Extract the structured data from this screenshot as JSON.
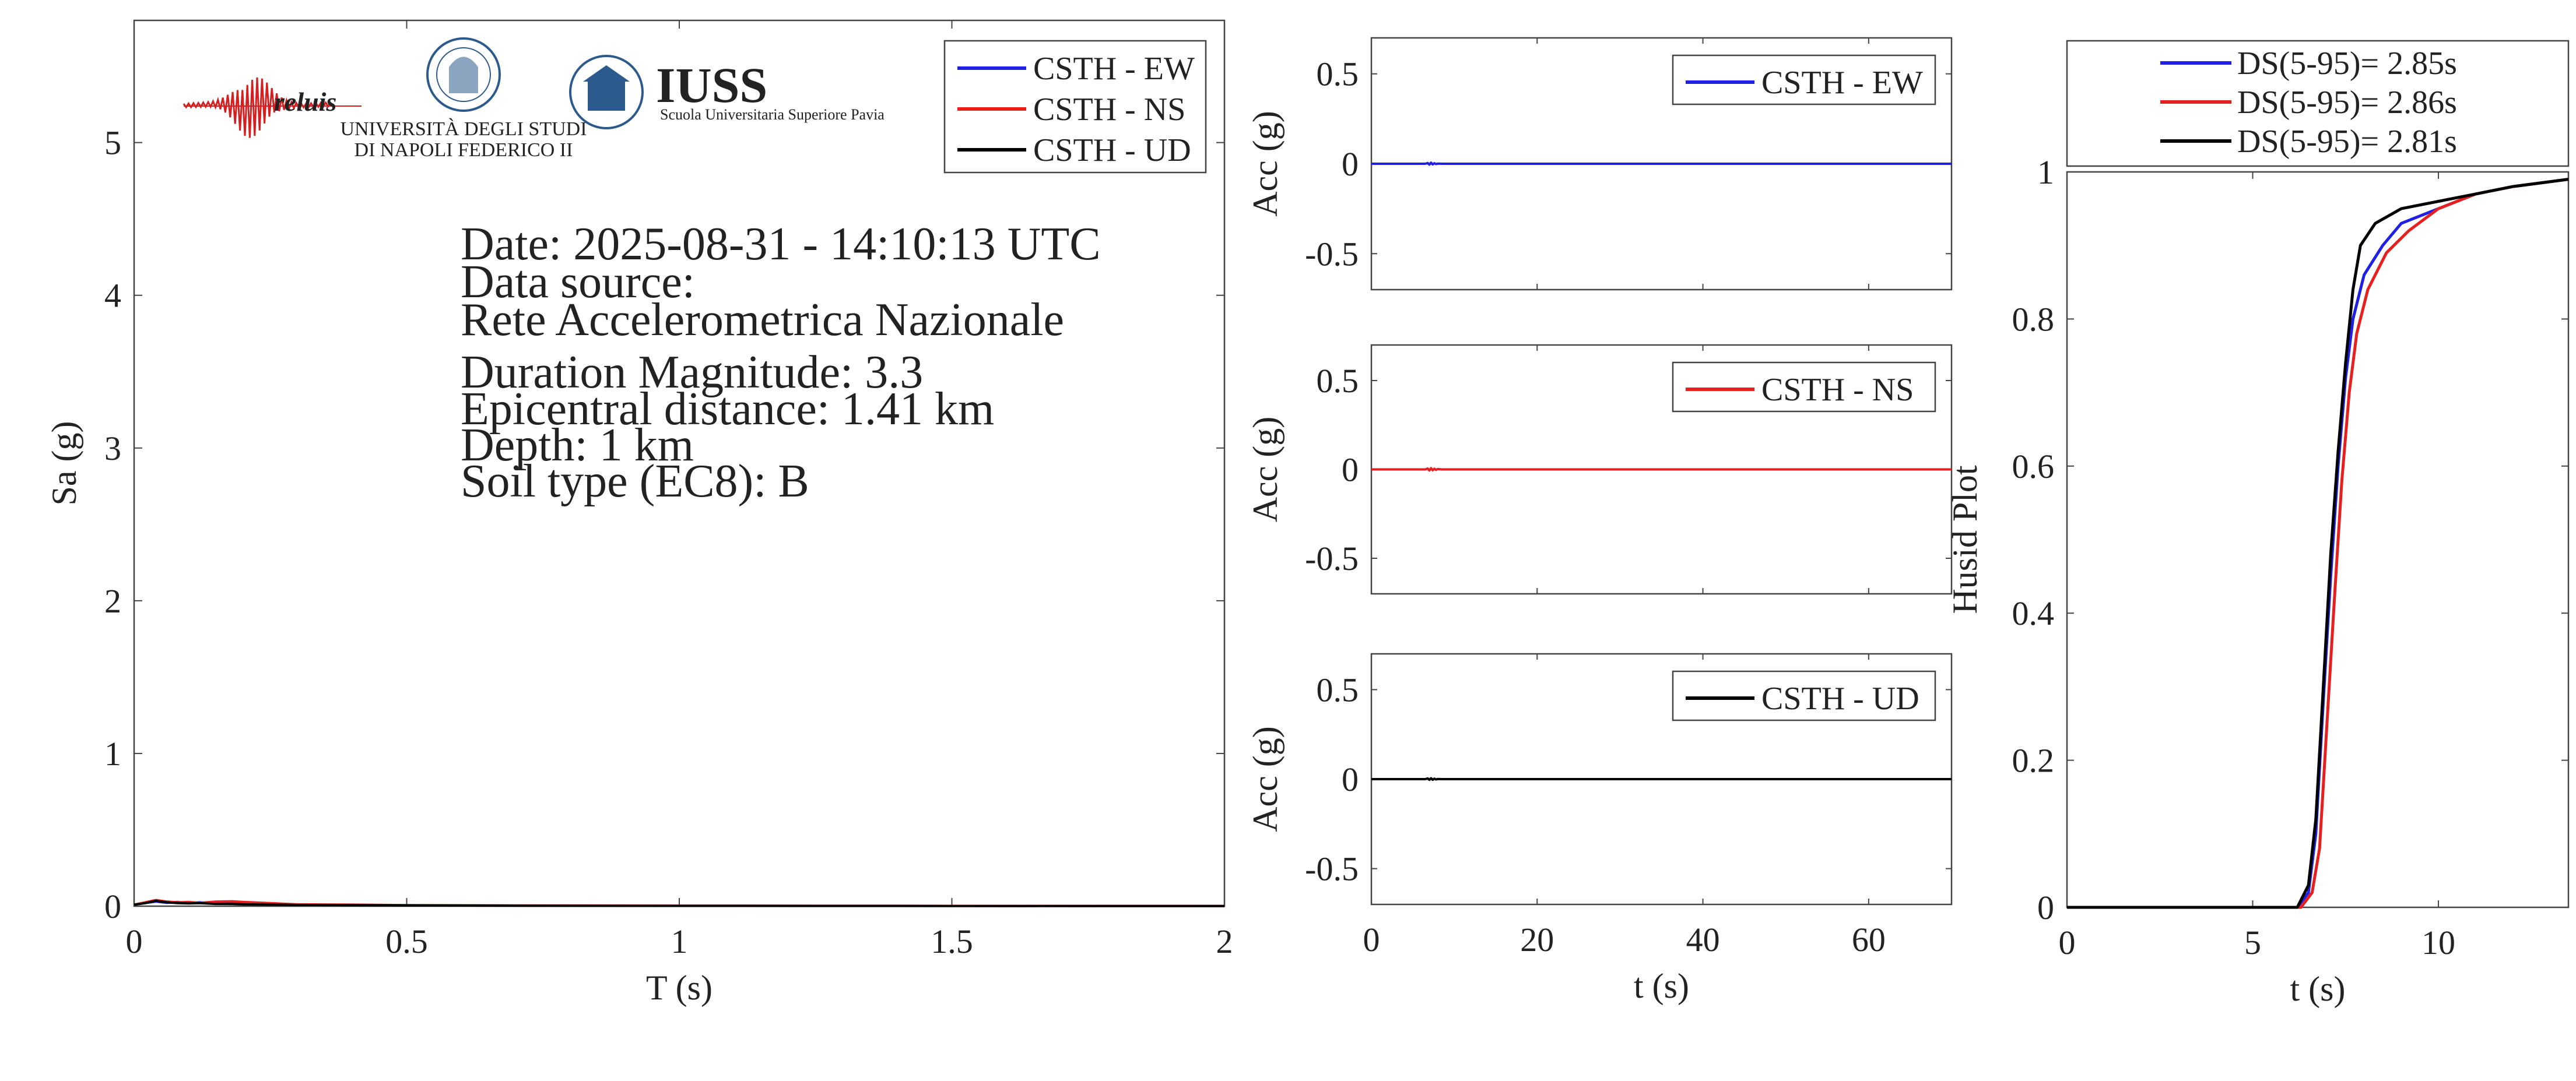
{
  "colors": {
    "ew": "#1f1fe6",
    "ns": "#e61f1f",
    "ud": "#000000",
    "axis": "#444444",
    "logo_red": "#d42020",
    "logo_blue": "#2c5a8c"
  },
  "info": {
    "date": "Date: 2025-08-31 - 14:10:13 UTC",
    "source_label": "Data source:",
    "source": "Rete Accelerometrica Nazionale",
    "magnitude": "Duration Magnitude: 3.3",
    "distance": "Epicentral distance: 1.41 km",
    "depth": "Depth: 1 km",
    "soil": "Soil type (EC8): B"
  },
  "logos": {
    "reluis": "reluis",
    "unina_line1": "UNIVERSITÀ DEGLI STUDI",
    "unina_line2": "DI NAPOLI FEDERICO II",
    "iuss": "IUSS",
    "iuss_sub": "Scuola Universitaria Superiore Pavia"
  },
  "chart_data": [
    {
      "type": "line",
      "id": "spectrum",
      "title": "",
      "xlabel": "T (s)",
      "ylabel": "Sa (g)",
      "xlim": [
        0,
        2
      ],
      "ylim": [
        0,
        5.8
      ],
      "xticks": [
        0,
        0.5,
        1,
        1.5,
        2
      ],
      "xtick_labels": [
        "0",
        "0.5",
        "1",
        "1.5",
        "2"
      ],
      "yticks": [
        0,
        1,
        2,
        3,
        4,
        5
      ],
      "ytick_labels": [
        "0",
        "1",
        "2",
        "3",
        "4",
        "5"
      ],
      "legend_position": "top-right",
      "series": [
        {
          "name": "CSTH - EW",
          "color_key": "ew",
          "x": [
            0,
            0.02,
            0.04,
            0.06,
            0.08,
            0.1,
            0.12,
            0.15,
            0.18,
            0.2,
            0.25,
            0.3,
            0.4,
            0.5,
            0.7,
            1.0,
            1.5,
            2.0
          ],
          "y": [
            0.01,
            0.02,
            0.03,
            0.022,
            0.028,
            0.02,
            0.025,
            0.018,
            0.022,
            0.02,
            0.015,
            0.01,
            0.008,
            0.006,
            0.004,
            0.003,
            0.002,
            0.001
          ]
        },
        {
          "name": "CSTH - NS",
          "color_key": "ns",
          "x": [
            0,
            0.02,
            0.04,
            0.06,
            0.08,
            0.1,
            0.12,
            0.15,
            0.18,
            0.2,
            0.25,
            0.3,
            0.4,
            0.5,
            0.7,
            1.0,
            1.5,
            2.0
          ],
          "y": [
            0.01,
            0.025,
            0.04,
            0.03,
            0.025,
            0.028,
            0.022,
            0.03,
            0.032,
            0.028,
            0.02,
            0.012,
            0.01,
            0.007,
            0.005,
            0.003,
            0.002,
            0.001
          ]
        },
        {
          "name": "CSTH - UD",
          "color_key": "ud",
          "x": [
            0,
            0.02,
            0.04,
            0.06,
            0.08,
            0.1,
            0.12,
            0.15,
            0.18,
            0.2,
            0.25,
            0.3,
            0.4,
            0.5,
            0.7,
            1.0,
            1.5,
            2.0
          ],
          "y": [
            0.01,
            0.02,
            0.035,
            0.025,
            0.02,
            0.018,
            0.02,
            0.015,
            0.014,
            0.012,
            0.01,
            0.008,
            0.006,
            0.005,
            0.003,
            0.002,
            0.001,
            0.001
          ]
        }
      ]
    },
    {
      "type": "line",
      "id": "acc_ew",
      "xlabel": "",
      "ylabel": "Acc (g)",
      "xlim": [
        0,
        70
      ],
      "ylim": [
        -0.7,
        0.7
      ],
      "xticks": [
        0,
        20,
        40,
        60
      ],
      "xtick_labels": [],
      "yticks": [
        0.5,
        0,
        -0.5
      ],
      "ytick_labels": [
        "0.5",
        "0",
        "-0.5"
      ],
      "legend_position": "top-right",
      "series": [
        {
          "name": "CSTH - EW",
          "color_key": "ew",
          "x": [
            0,
            6.5,
            6.8,
            7.0,
            7.2,
            7.4,
            7.6,
            7.8,
            8.0,
            8.5,
            70
          ],
          "y": [
            0,
            0,
            0.004,
            -0.005,
            0.006,
            -0.004,
            0.003,
            -0.002,
            0.001,
            0,
            0
          ]
        }
      ]
    },
    {
      "type": "line",
      "id": "acc_ns",
      "xlabel": "",
      "ylabel": "Acc (g)",
      "xlim": [
        0,
        70
      ],
      "ylim": [
        -0.7,
        0.7
      ],
      "xticks": [
        0,
        20,
        40,
        60
      ],
      "xtick_labels": [],
      "yticks": [
        0.5,
        0,
        -0.5
      ],
      "ytick_labels": [
        "0.5",
        "0",
        "-0.5"
      ],
      "legend_position": "top-right",
      "series": [
        {
          "name": "CSTH - NS",
          "color_key": "ns",
          "x": [
            0,
            6.5,
            6.8,
            7.0,
            7.2,
            7.4,
            7.6,
            7.8,
            8.0,
            8.5,
            70
          ],
          "y": [
            0,
            0,
            0.005,
            -0.006,
            0.007,
            -0.005,
            0.004,
            -0.003,
            0.002,
            0,
            0
          ]
        }
      ]
    },
    {
      "type": "line",
      "id": "acc_ud",
      "xlabel": "t (s)",
      "ylabel": "Acc (g)",
      "xlim": [
        0,
        70
      ],
      "ylim": [
        -0.7,
        0.7
      ],
      "xticks": [
        0,
        20,
        40,
        60
      ],
      "xtick_labels": [
        "0",
        "20",
        "40",
        "60"
      ],
      "yticks": [
        0.5,
        0,
        -0.5
      ],
      "ytick_labels": [
        "0.5",
        "0",
        "-0.5"
      ],
      "legend_position": "top-right",
      "series": [
        {
          "name": "CSTH - UD",
          "color_key": "ud",
          "x": [
            0,
            6.5,
            6.8,
            7.0,
            7.2,
            7.4,
            7.6,
            7.8,
            8.0,
            8.5,
            70
          ],
          "y": [
            0,
            0,
            0.004,
            -0.004,
            0.005,
            -0.004,
            0.003,
            -0.002,
            0.001,
            0,
            0
          ]
        }
      ]
    },
    {
      "type": "line",
      "id": "husid",
      "xlabel": "t (s)",
      "ylabel": "Husid Plot",
      "xlim": [
        0,
        13.5
      ],
      "ylim": [
        0,
        1
      ],
      "xticks": [
        0,
        5,
        10
      ],
      "xtick_labels": [
        "0",
        "5",
        "10"
      ],
      "yticks": [
        0,
        0.2,
        0.4,
        0.6,
        0.8,
        1
      ],
      "ytick_labels": [
        "0",
        "0.2",
        "0.4",
        "0.6",
        "0.8",
        "1"
      ],
      "legend_position": "above-plot",
      "series": [
        {
          "name": "DS(5-95)= 2.85s",
          "color_key": "ew",
          "x": [
            0,
            6.2,
            6.5,
            6.7,
            6.9,
            7.1,
            7.3,
            7.5,
            7.7,
            8.0,
            8.5,
            9.0,
            10.0,
            11.0,
            12.0,
            13.5
          ],
          "y": [
            0,
            0,
            0.02,
            0.1,
            0.28,
            0.45,
            0.6,
            0.72,
            0.8,
            0.86,
            0.9,
            0.93,
            0.95,
            0.97,
            0.98,
            0.99
          ]
        },
        {
          "name": "DS(5-95)= 2.86s",
          "color_key": "ns",
          "x": [
            0,
            6.3,
            6.6,
            6.8,
            7.0,
            7.2,
            7.4,
            7.6,
            7.8,
            8.1,
            8.6,
            9.2,
            10.0,
            11.0,
            12.0,
            13.5
          ],
          "y": [
            0,
            0,
            0.02,
            0.08,
            0.25,
            0.42,
            0.58,
            0.7,
            0.78,
            0.84,
            0.89,
            0.92,
            0.95,
            0.97,
            0.98,
            0.99
          ]
        },
        {
          "name": "DS(5-95)= 2.81s",
          "color_key": "ud",
          "x": [
            0,
            6.2,
            6.5,
            6.7,
            6.9,
            7.1,
            7.3,
            7.5,
            7.7,
            7.9,
            8.3,
            9.0,
            10.0,
            11.0,
            12.0,
            13.5
          ],
          "y": [
            0,
            0,
            0.03,
            0.12,
            0.3,
            0.48,
            0.62,
            0.74,
            0.84,
            0.9,
            0.93,
            0.95,
            0.96,
            0.97,
            0.98,
            0.99
          ]
        }
      ]
    }
  ]
}
